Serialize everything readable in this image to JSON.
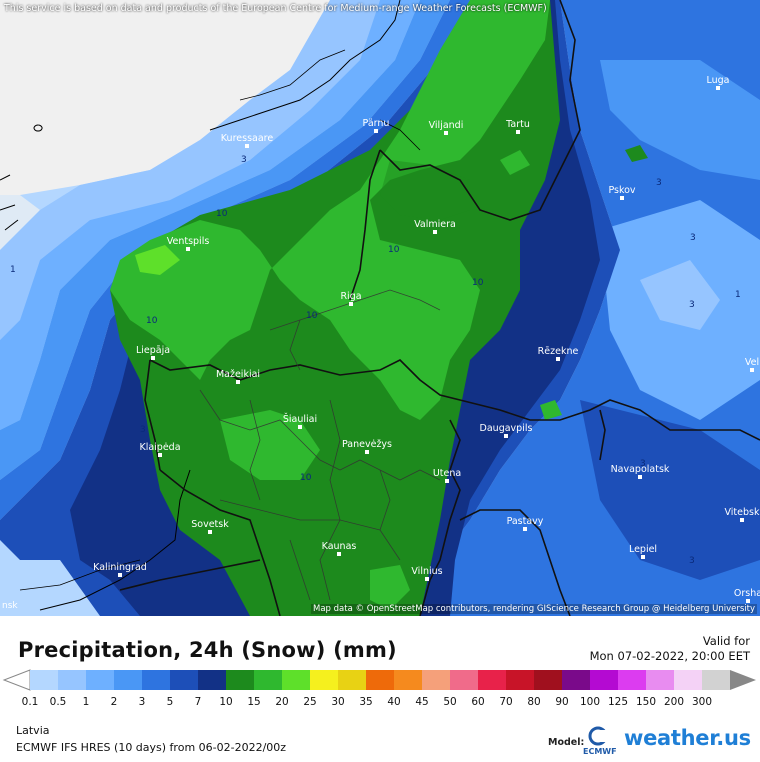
{
  "map": {
    "disclaimer": "This service is based on data and products of the European Centre for Medium-range Weather Forecasts (ECMWF)",
    "attribution": "Map data © OpenStreetMap contributors, rendering GIScience Research Group @ Heidelberg University",
    "edge_label": "nsk",
    "cities": [
      {
        "name": "Luga"
      },
      {
        "name": "Pärnu"
      },
      {
        "name": "Viljandi"
      },
      {
        "name": "Tartu"
      },
      {
        "name": "Kuressaare"
      },
      {
        "name": "Pskov"
      },
      {
        "name": "Valmiera"
      },
      {
        "name": "Ventspils"
      },
      {
        "name": "Riga"
      },
      {
        "name": "Liepāja"
      },
      {
        "name": "Rēzekne"
      },
      {
        "name": "Mažeikiai"
      },
      {
        "name": "Šiauliai"
      },
      {
        "name": "Klaipėda"
      },
      {
        "name": "Panevėžys"
      },
      {
        "name": "Daugavpils"
      },
      {
        "name": "Navapolatsk"
      },
      {
        "name": "Utena"
      },
      {
        "name": "Vitebsk"
      },
      {
        "name": "Sovetsk"
      },
      {
        "name": "Pastavy"
      },
      {
        "name": "Kaunas"
      },
      {
        "name": "Lepiel"
      },
      {
        "name": "Kaliningrad"
      },
      {
        "name": "Vilnius"
      },
      {
        "name": "Orsha"
      },
      {
        "name": "Vel"
      }
    ],
    "isoline_labels": [
      "3",
      "3",
      "10",
      "10",
      "10",
      "10",
      "10",
      "3",
      "3",
      "1",
      "3",
      "3",
      "1",
      "10",
      "3"
    ]
  },
  "legend": {
    "title": "Precipitation, 24h (Snow) (mm)",
    "valid_label": "Valid for",
    "valid_time": "Mon 07-02-2022, 20:00 EET",
    "scale": [
      {
        "value": "0.1",
        "color": "#b4d7ff"
      },
      {
        "value": "0.5",
        "color": "#96c5ff"
      },
      {
        "value": "1",
        "color": "#6eb0ff"
      },
      {
        "value": "2",
        "color": "#4a97f5"
      },
      {
        "value": "3",
        "color": "#2e74e0"
      },
      {
        "value": "5",
        "color": "#1d4fb8"
      },
      {
        "value": "7",
        "color": "#123186"
      },
      {
        "value": "10",
        "color": "#1d8a1d"
      },
      {
        "value": "15",
        "color": "#2fb82f"
      },
      {
        "value": "20",
        "color": "#5ee02a"
      },
      {
        "value": "25",
        "color": "#f5f01e"
      },
      {
        "value": "30",
        "color": "#e8d214"
      },
      {
        "value": "35",
        "color": "#ee6a0a"
      },
      {
        "value": "40",
        "color": "#f58a1e"
      },
      {
        "value": "45",
        "color": "#f5a07a"
      },
      {
        "value": "50",
        "color": "#f06b8a"
      },
      {
        "value": "60",
        "color": "#e8224a"
      },
      {
        "value": "70",
        "color": "#c81428"
      },
      {
        "value": "80",
        "color": "#a0101e"
      },
      {
        "value": "90",
        "color": "#7a0a8a"
      },
      {
        "value": "100",
        "color": "#b40ad2"
      },
      {
        "value": "125",
        "color": "#dc3cf0"
      },
      {
        "value": "150",
        "color": "#e88cf0"
      },
      {
        "value": "200",
        "color": "#f4d2f6"
      },
      {
        "value": "300",
        "color": "#d2d2d2"
      }
    ],
    "region": "Latvia",
    "model": "ECMWF IFS HRES (10 days) from 06-02-2022/00z",
    "model_label": "Model:",
    "model_logo_text": "ECMWF",
    "brand": "weather.us"
  }
}
